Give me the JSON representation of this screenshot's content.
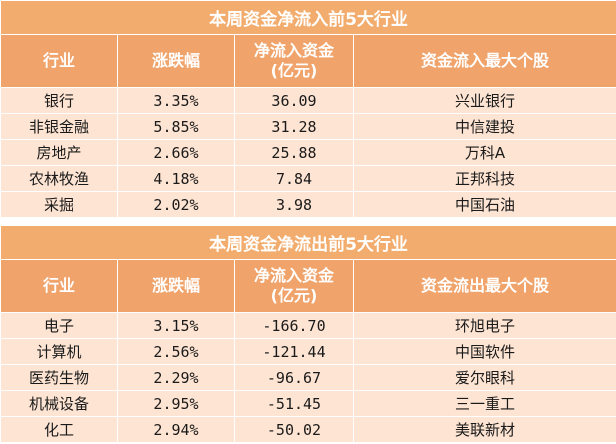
{
  "inflow": {
    "title": "本周资金净流入前5大行业",
    "headers": {
      "industry": "行业",
      "change": "涨跌幅",
      "netflow_line1": "净流入资金",
      "netflow_line2": "(亿元)",
      "top_stock": "资金流入最大个股"
    },
    "rows": [
      {
        "industry": "银行",
        "change": "3.35%",
        "netflow": "36.09",
        "stock": "兴业银行"
      },
      {
        "industry": "非银金融",
        "change": "5.85%",
        "netflow": "31.28",
        "stock": "中信建投"
      },
      {
        "industry": "房地产",
        "change": "2.66%",
        "netflow": "25.88",
        "stock": "万科A"
      },
      {
        "industry": "农林牧渔",
        "change": "4.18%",
        "netflow": "7.84",
        "stock": "正邦科技"
      },
      {
        "industry": "采掘",
        "change": "2.02%",
        "netflow": "3.98",
        "stock": "中国石油"
      }
    ]
  },
  "outflow": {
    "title": "本周资金净流出前5大行业",
    "headers": {
      "industry": "行业",
      "change": "涨跌幅",
      "netflow_line1": "净流入资金",
      "netflow_line2": "(亿元)",
      "top_stock": "资金流出最大个股"
    },
    "rows": [
      {
        "industry": "电子",
        "change": "3.15%",
        "netflow": "-166.70",
        "stock": "环旭电子"
      },
      {
        "industry": "计算机",
        "change": "2.56%",
        "netflow": "-121.44",
        "stock": "中国软件"
      },
      {
        "industry": "医药生物",
        "change": "2.29%",
        "netflow": "-96.67",
        "stock": "爱尔眼科"
      },
      {
        "industry": "机械设备",
        "change": "2.95%",
        "netflow": "-51.45",
        "stock": "三一重工"
      },
      {
        "industry": "化工",
        "change": "2.94%",
        "netflow": "-50.02",
        "stock": "美联新材"
      }
    ]
  },
  "colors": {
    "title_bg": "#f2ad6e",
    "header_bg": "#f0a36a",
    "row_bg": "#fde4d3",
    "header_text": "#ffffff",
    "body_text": "#1a1a1a"
  }
}
